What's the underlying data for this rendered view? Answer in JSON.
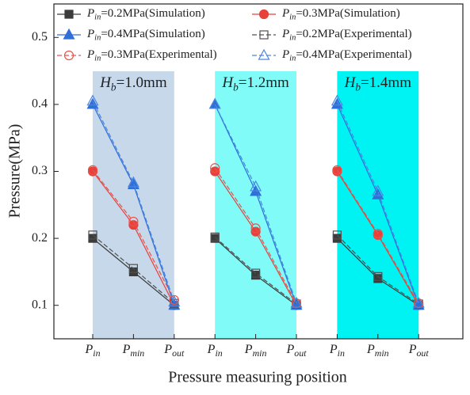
{
  "chart_data": {
    "type": "line",
    "x_label": "Pressure measuring position",
    "y_label": "Pressure(MPa)",
    "categories": [
      "Pin",
      "Pmin",
      "Pout",
      "Pin",
      "Pmin",
      "Pout",
      "Pin",
      "Pmin",
      "Pout"
    ],
    "panels": [
      {
        "annotation": "Hb=1.0mm",
        "color": "#c6d8ea"
      },
      {
        "annotation": "Hb=1.2mm",
        "color": "#80fbf8"
      },
      {
        "annotation": "Hb=1.4mm",
        "color": "#00f3f3"
      }
    ],
    "ylim": [
      0.05,
      0.55
    ],
    "yticks": [
      0.1,
      0.2,
      0.3,
      0.4,
      0.5
    ],
    "series": [
      {
        "name": "Pin=0.2MPa(Simulation)",
        "color": "#3c3c3c",
        "marker": "square",
        "filled": true,
        "dashed": false,
        "values": [
          0.2,
          0.15,
          0.1,
          0.2,
          0.145,
          0.1,
          0.2,
          0.14,
          0.1
        ]
      },
      {
        "name": "Pin=0.3MPa(Simulation)",
        "color": "#e8413a",
        "marker": "circle",
        "filled": true,
        "dashed": false,
        "values": [
          0.3,
          0.22,
          0.1,
          0.3,
          0.21,
          0.1,
          0.3,
          0.205,
          0.1
        ]
      },
      {
        "name": "Pin=0.4MPa(Simulation)",
        "color": "#2f6fd8",
        "marker": "triangle",
        "filled": true,
        "dashed": false,
        "values": [
          0.4,
          0.28,
          0.1,
          0.4,
          0.27,
          0.1,
          0.4,
          0.265,
          0.1
        ]
      },
      {
        "name": "Pin=0.2MPa(Experimental)",
        "color": "#505050",
        "marker": "square",
        "filled": false,
        "dashed": true,
        "values": [
          0.205,
          0.155,
          0.103,
          0.202,
          0.148,
          0.102,
          0.205,
          0.143,
          0.102
        ]
      },
      {
        "name": "Pin=0.3MPa(Experimental)",
        "color": "#e8534c",
        "marker": "circle",
        "filled": false,
        "dashed": true,
        "values": [
          0.302,
          0.225,
          0.108,
          0.305,
          0.215,
          0.103,
          0.302,
          0.207,
          0.103
        ]
      },
      {
        "name": "Pin=0.4MPa(Experimental)",
        "color": "#4a86e0",
        "marker": "triangle",
        "filled": false,
        "dashed": true,
        "values": [
          0.405,
          0.283,
          0.105,
          0.4,
          0.277,
          0.103,
          0.405,
          0.27,
          0.103
        ]
      }
    ]
  }
}
